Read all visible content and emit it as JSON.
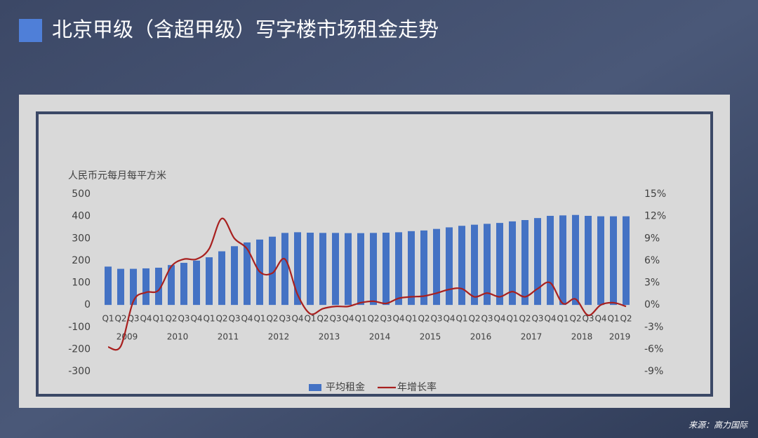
{
  "chart_data": {
    "type": "combo",
    "title": "北京甲级（含超甲级）写字楼市场租金走势",
    "unit_label": "人民币元每月每平方米",
    "source": "来源：高力国际",
    "groups": [
      {
        "label": "2009",
        "categories": [
          "Q1",
          "Q2",
          "Q3",
          "Q4"
        ]
      },
      {
        "label": "2010",
        "categories": [
          "Q1",
          "Q2",
          "Q3",
          "Q4"
        ]
      },
      {
        "label": "2011",
        "categories": [
          "Q1",
          "Q2",
          "Q3",
          "Q4"
        ]
      },
      {
        "label": "2012",
        "categories": [
          "Q1",
          "Q2",
          "Q3",
          "Q4"
        ]
      },
      {
        "label": "2013",
        "categories": [
          "Q1",
          "Q2",
          "Q3",
          "Q4"
        ]
      },
      {
        "label": "2014",
        "categories": [
          "Q1",
          "Q2",
          "Q3",
          "Q4"
        ]
      },
      {
        "label": "2015",
        "categories": [
          "Q1",
          "Q2",
          "Q3",
          "Q4"
        ]
      },
      {
        "label": "2016",
        "categories": [
          "Q1",
          "Q2",
          "Q3",
          "Q4"
        ]
      },
      {
        "label": "2017",
        "categories": [
          "Q1",
          "Q2",
          "Q3",
          "Q4"
        ]
      },
      {
        "label": "2018",
        "categories": [
          "Q1",
          "Q2",
          "Q3",
          "Q4"
        ]
      },
      {
        "label": "2019",
        "categories": [
          "Q1",
          "Q2"
        ]
      }
    ],
    "series": [
      {
        "name": "平均租金",
        "type": "bar",
        "color": "#4472c4",
        "values": [
          173,
          163,
          163,
          165,
          168,
          180,
          190,
          200,
          215,
          242,
          265,
          282,
          295,
          308,
          325,
          328,
          326,
          325,
          325,
          324,
          324,
          325,
          326,
          328,
          333,
          336,
          343,
          350,
          357,
          362,
          366,
          370,
          377,
          383,
          392,
          402,
          404,
          406,
          402,
          400,
          400,
          400
        ]
      },
      {
        "name": "年增长率",
        "type": "line",
        "axis": "y2",
        "color": "#a8201f",
        "values": [
          -5.7,
          -5.6,
          0.5,
          1.7,
          2.0,
          5.2,
          6.2,
          6.2,
          7.6,
          11.7,
          9.0,
          7.6,
          4.5,
          4.3,
          6.2,
          1.4,
          -1.2,
          -0.5,
          -0.2,
          -0.2,
          0.3,
          0.5,
          0.2,
          0.9,
          1.1,
          1.2,
          1.6,
          2.1,
          2.2,
          1.1,
          1.6,
          1.1,
          1.8,
          1.1,
          2.2,
          3.0,
          0.2,
          0.8,
          -1.4,
          0,
          0.3,
          -0.2
        ]
      }
    ],
    "ylim": [
      -300,
      500
    ],
    "yticks": [
      -300,
      -200,
      -100,
      0,
      100,
      200,
      300,
      400,
      500
    ],
    "y2lim": [
      -9,
      15
    ],
    "y2ticks": [
      {
        "value": -9,
        "label": "-9%"
      },
      {
        "value": -6,
        "label": "-6%"
      },
      {
        "value": -3,
        "label": "-3%"
      },
      {
        "value": 0,
        "label": "0%"
      },
      {
        "value": 3,
        "label": "3%"
      },
      {
        "value": 6,
        "label": "6%"
      },
      {
        "value": 9,
        "label": "9%"
      },
      {
        "value": 12,
        "label": "12%"
      },
      {
        "value": 15,
        "label": "15%"
      }
    ],
    "grid": false,
    "legend": "bottom"
  }
}
